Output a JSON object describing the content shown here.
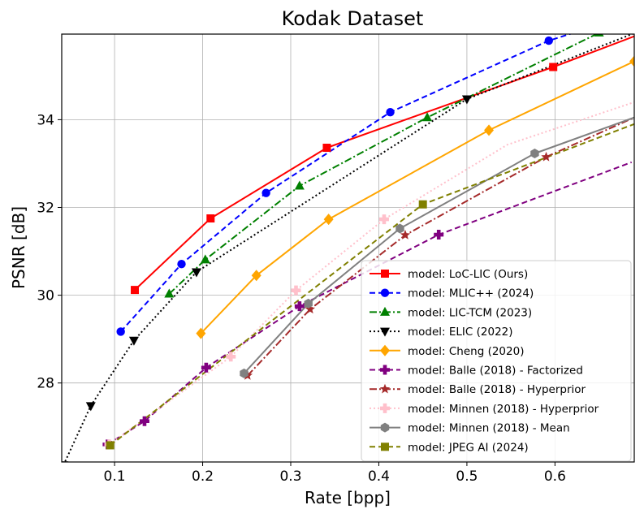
{
  "chart_data": {
    "type": "line",
    "title": "Kodak Dataset",
    "xlabel": "Rate [bpp]",
    "ylabel": "PSNR [dB]",
    "xlim": [
      0.04,
      0.69
    ],
    "ylim": [
      26.2,
      35.95
    ],
    "xticks": [
      0.1,
      0.2,
      0.3,
      0.4,
      0.5,
      0.6
    ],
    "xtick_labels": [
      "0.1",
      "0.2",
      "0.3",
      "0.4",
      "0.5",
      "0.6"
    ],
    "yticks": [
      28,
      30,
      32,
      34
    ],
    "ytick_labels": [
      "28",
      "30",
      "32",
      "34"
    ],
    "grid": true,
    "legend_position": "lower-right",
    "series": [
      {
        "name": "model: LoC-LIC (Ours)",
        "color": "#ff0000",
        "dash": "solid",
        "marker": "square",
        "x": [
          0.123,
          0.209,
          0.341,
          0.598,
          0.69
        ],
        "y": [
          30.12,
          31.75,
          33.36,
          35.2,
          35.9
        ],
        "marker_count": 4
      },
      {
        "name": "model: MLIC++ (2024)",
        "color": "#0000ff",
        "dash": "dashed",
        "marker": "circle",
        "x": [
          0.107,
          0.176,
          0.272,
          0.413,
          0.593,
          0.64
        ],
        "y": [
          29.17,
          30.71,
          32.33,
          34.17,
          35.8,
          36.1
        ],
        "marker_count": 5
      },
      {
        "name": "model: LIC-TCM (2023)",
        "color": "#008000",
        "dash": "dashdot",
        "marker": "triangle-up",
        "x": [
          0.162,
          0.203,
          0.31,
          0.455,
          0.65,
          0.69
        ],
        "y": [
          30.03,
          30.81,
          32.49,
          34.05,
          35.98,
          36.1
        ],
        "marker_count": 5
      },
      {
        "name": "model: ELIC (2022)",
        "color": "#000000",
        "dash": "dotted",
        "marker": "triangle-down",
        "x": [
          0.042,
          0.073,
          0.122,
          0.193,
          0.5,
          0.69
        ],
        "y": [
          26.13,
          27.48,
          28.97,
          30.53,
          34.47,
          35.97
        ],
        "marker_count": 5
      },
      {
        "name": "model: Cheng (2020)",
        "color": "#ffa500",
        "dash": "solid",
        "marker": "diamond",
        "x": [
          0.198,
          0.261,
          0.343,
          0.525,
          0.69
        ],
        "y": [
          29.13,
          30.45,
          31.73,
          33.76,
          35.33
        ],
        "marker_count": 5
      },
      {
        "name": "model: Balle (2018) - Factorized",
        "color": "#800080",
        "dash": "dashed",
        "marker": "plus",
        "x": [
          0.092,
          0.134,
          0.204,
          0.31,
          0.468,
          0.687
        ],
        "y": [
          26.6,
          27.13,
          28.35,
          29.75,
          31.38,
          33.03
        ],
        "marker_count": 5
      },
      {
        "name": "model: Balle (2018) - Hyperprior",
        "color": "#a52a2a",
        "dash": "dashdot",
        "marker": "star",
        "x": [
          0.251,
          0.322,
          0.43,
          0.59,
          0.69
        ],
        "y": [
          28.17,
          29.68,
          31.37,
          33.15,
          34.05
        ],
        "marker_count": 4
      },
      {
        "name": "model: Minnen (2018) - Hyperprior",
        "color": "#ffc0cb",
        "dash": "dotted",
        "marker": "plus",
        "x": [
          0.094,
          0.232,
          0.306,
          0.406,
          0.546,
          0.69
        ],
        "y": [
          26.6,
          28.6,
          30.11,
          31.73,
          33.43,
          34.4
        ],
        "marker_count": 4
      },
      {
        "name": "model: Minnen (2018) - Mean",
        "color": "#808080",
        "dash": "solid",
        "marker": "hexagon",
        "x": [
          0.247,
          0.32,
          0.424,
          0.577,
          0.69
        ],
        "y": [
          28.22,
          29.81,
          31.52,
          33.23,
          34.05
        ],
        "marker_count": 4
      },
      {
        "name": "model: JPEG AI (2024)",
        "color": "#808000",
        "dash": "dashed",
        "marker": "square",
        "x": [
          0.095,
          0.45,
          0.69
        ],
        "y": [
          26.58,
          32.07,
          33.9
        ],
        "marker_count": 2
      }
    ]
  }
}
